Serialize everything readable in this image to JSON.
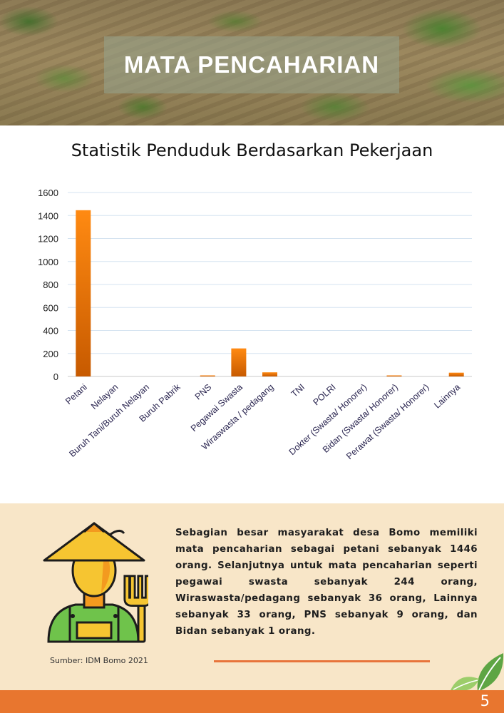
{
  "banner": {
    "title": "MATA PENCAHARIAN"
  },
  "chart_data": {
    "type": "bar",
    "title": "Statistik Penduduk Berdasarkan Pekerjaan",
    "xlabel": "",
    "ylabel": "",
    "ylim": [
      0,
      1600
    ],
    "yticks": [
      0,
      200,
      400,
      600,
      800,
      1000,
      1200,
      1400,
      1600
    ],
    "grid": true,
    "categories": [
      "Petani",
      "Nelayan",
      "Buruh Tani/Buruh Nelayan",
      "Buruh Pabrik",
      "PNS",
      "Pegawai Swasta",
      "Wiraswasta / pedagang",
      "TNI",
      "POLRI",
      "Dokter (Swasta/ Honorer)",
      "Bidan (Swasta/ Honorer)",
      "Perawat (Swasta/ Honorer)",
      "Lainnya"
    ],
    "values": [
      1446,
      0,
      0,
      0,
      9,
      244,
      36,
      0,
      0,
      0,
      1,
      0,
      33
    ],
    "bar_color_top": "#ff8a12",
    "bar_color_bottom": "#c75a00"
  },
  "info": {
    "text": "Sebagian besar masyarakat desa Bomo memiliki mata pencaharian sebagai petani sebanyak 1446 orang. Selanjutnya untuk mata pencaharian seperti pegawai swasta sebanyak 244 orang, Wiraswasta/pedagang sebanyak 36 orang, Lainnya sebanyak 33 orang, PNS sebanyak 9 orang, dan Bidan sebanyak 1 orang.",
    "source": "Sumber: IDM Bomo 2021",
    "icon": "farmer-icon"
  },
  "footer": {
    "page_number": "5",
    "color": "#e8762f"
  }
}
